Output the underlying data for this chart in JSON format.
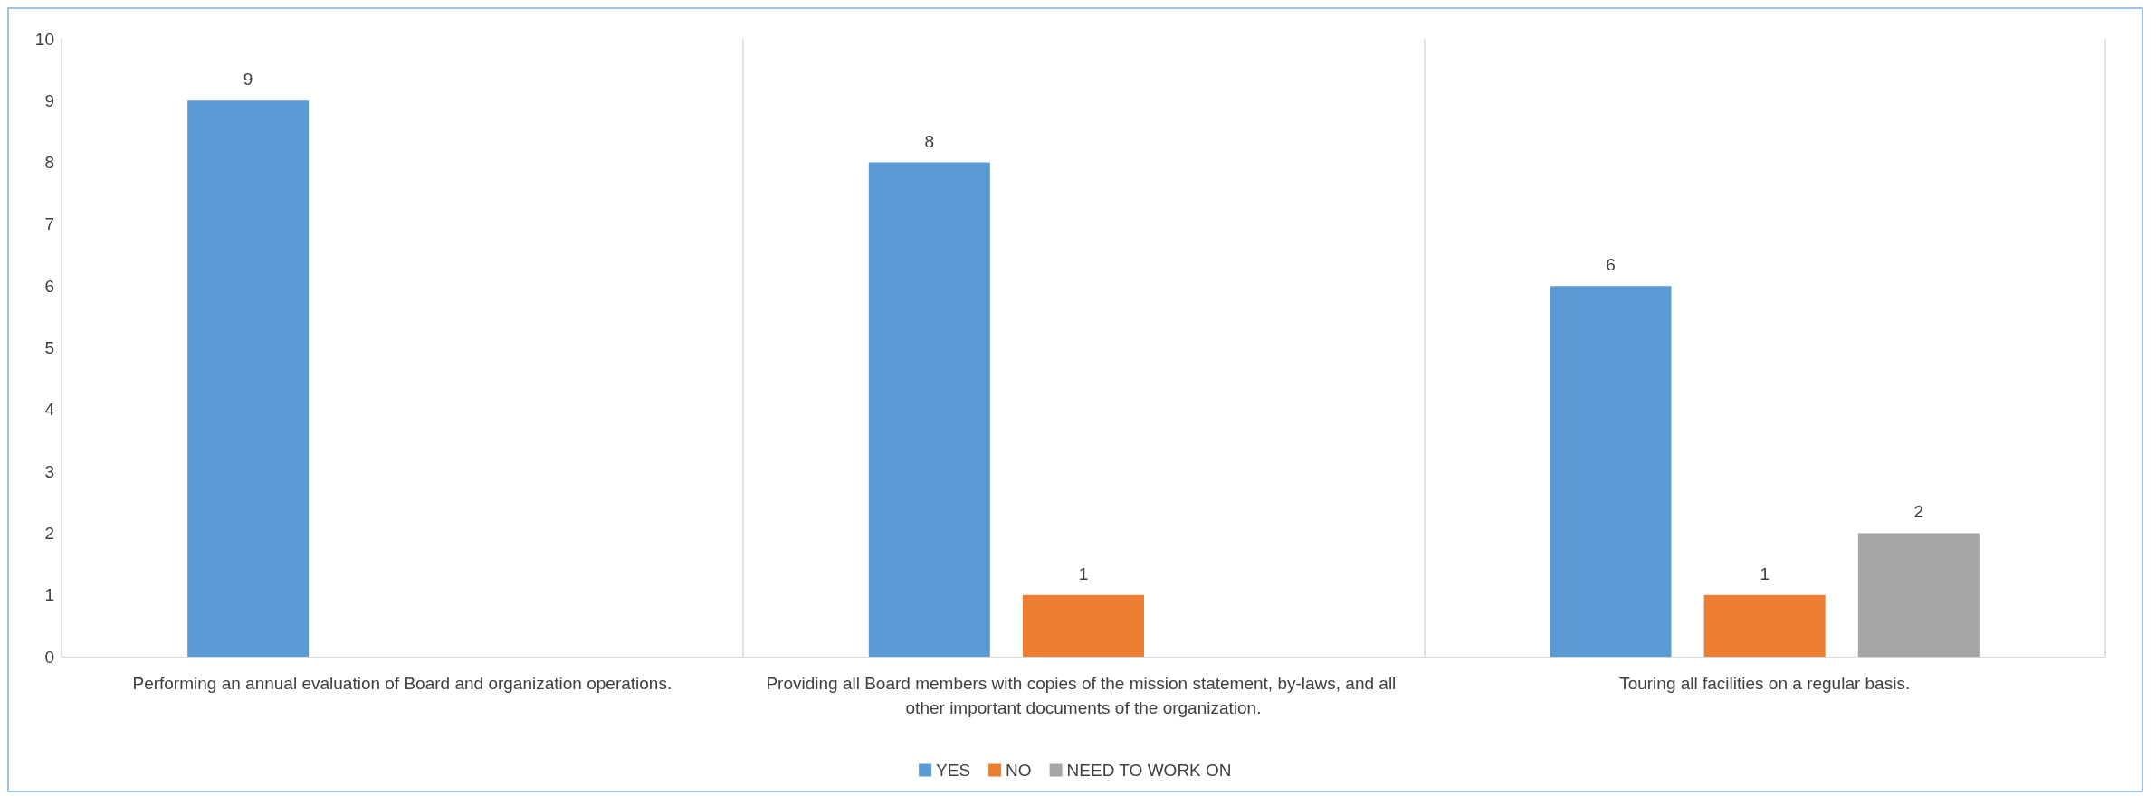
{
  "chart_data": {
    "type": "bar",
    "categories": [
      "Performing an annual evaluation of Board and organization operations.",
      "Providing all Board members with copies of the mission statement, by-laws, and all other important documents of the organization.",
      "Touring all facilities on a regular basis."
    ],
    "series": [
      {
        "name": "YES",
        "color": "#5b9bd5",
        "values": [
          9,
          8,
          6
        ]
      },
      {
        "name": "NO",
        "color": "#ed7d31",
        "values": [
          null,
          1,
          1
        ]
      },
      {
        "name": "NEED TO WORK ON",
        "color": "#a5a5a5",
        "values": [
          null,
          null,
          2
        ]
      }
    ],
    "ylim": [
      0,
      10
    ],
    "yticks": [
      0,
      1,
      2,
      3,
      4,
      5,
      6,
      7,
      8,
      9,
      10
    ],
    "grid": "x",
    "legend": "bottom",
    "data_labels": true
  }
}
